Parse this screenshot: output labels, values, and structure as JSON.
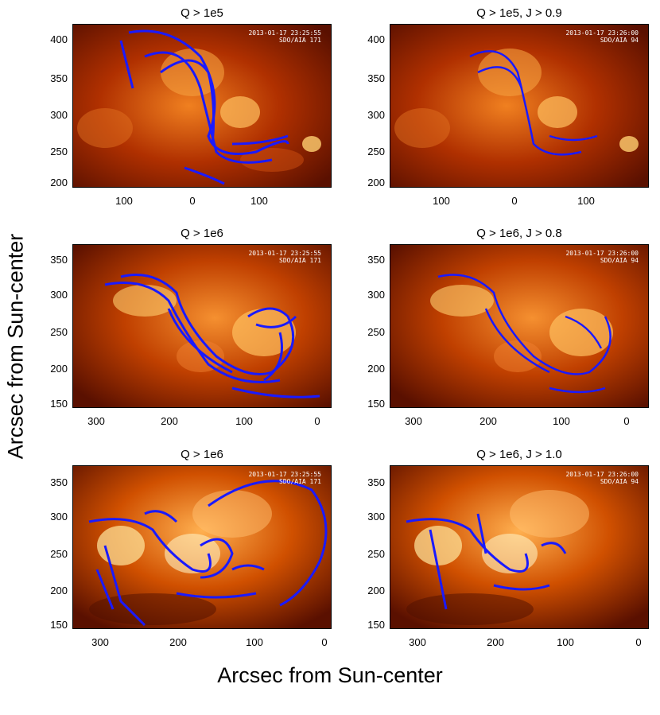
{
  "axes": {
    "ylabel": "Arcsec from Sun-center",
    "xlabel": "Arcsec from Sun-center"
  },
  "colors": {
    "field_lines": "#1a1aff",
    "background_dark": "#3a0a00",
    "background_mid": "#b83800",
    "background_bright": "#ffd060"
  },
  "panels": [
    {
      "title": "Q > 1e5",
      "stamp1": "2013-01-17 23:25:55",
      "stamp2": "SDO/AIA 171",
      "yticks": [
        "400",
        "350",
        "300",
        "250",
        "200"
      ],
      "xticks": [
        "100",
        "0",
        "100"
      ]
    },
    {
      "title": "Q > 1e5, J > 0.9",
      "stamp1": "2013-01-17 23:26:00",
      "stamp2": "SDO/AIA 94",
      "yticks": [
        "400",
        "350",
        "300",
        "250",
        "200"
      ],
      "xticks": [
        "100",
        "0",
        "100"
      ]
    },
    {
      "title": "Q > 1e6",
      "stamp1": "2013-01-17 23:25:55",
      "stamp2": "SDO/AIA 171",
      "yticks": [
        "350",
        "300",
        "250",
        "200",
        "150"
      ],
      "xticks": [
        "300",
        "200",
        "100",
        "0"
      ]
    },
    {
      "title": "Q > 1e6, J > 0.8",
      "stamp1": "2013-01-17 23:26:00",
      "stamp2": "SDO/AIA 94",
      "yticks": [
        "350",
        "300",
        "250",
        "200",
        "150"
      ],
      "xticks": [
        "300",
        "200",
        "100",
        "0"
      ]
    },
    {
      "title": "Q > 1e6",
      "stamp1": "2013-01-17 23:25:55",
      "stamp2": "SDO/AIA 171",
      "yticks": [
        "350",
        "300",
        "250",
        "200",
        "150"
      ],
      "xticks": [
        "300",
        "200",
        "100",
        "0"
      ]
    },
    {
      "title": "Q > 1e6, J > 1.0",
      "stamp1": "2013-01-17 23:26:00",
      "stamp2": "SDO/AIA 94",
      "yticks": [
        "350",
        "300",
        "250",
        "200",
        "150"
      ],
      "xticks": [
        "300",
        "200",
        "100",
        "0"
      ]
    }
  ]
}
